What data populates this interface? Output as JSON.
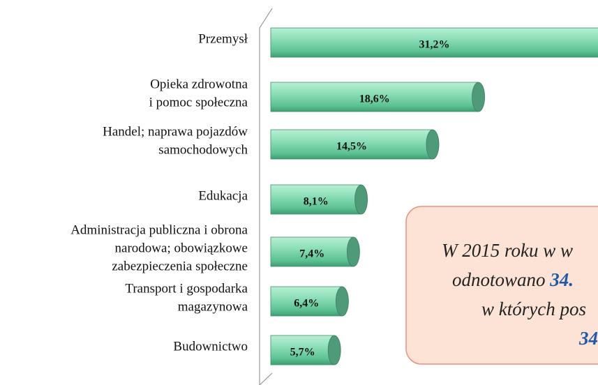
{
  "chart_data": {
    "type": "bar3d-horizontal",
    "categories": [
      [
        "Przemysł"
      ],
      [
        "Opieka zdrowotna",
        "i pomoc społeczna"
      ],
      [
        "Handel; naprawa pojazdów",
        "samochodowych"
      ],
      [
        "Edukacja"
      ],
      [
        "Administracja publiczna i obrona",
        "narodowa; obowiązkowe",
        "zabezpieczenia społeczne"
      ],
      [
        "Transport i gospodarka",
        "magazynowa"
      ],
      [
        "Budownictwo"
      ]
    ],
    "values": [
      31.2,
      18.6,
      14.5,
      8.1,
      7.4,
      6.4,
      5.7
    ],
    "value_labels": [
      "31,2%",
      "18,6%",
      "14,5%",
      "8,1%",
      "7,4%",
      "6,4%",
      "5,7%"
    ],
    "color": "#7fd9b0",
    "xlim": [
      0,
      29
    ],
    "annotation": [
      [
        "W 2015 roku w w"
      ],
      [
        "odnotowano ",
        "34."
      ],
      [
        "w których pos"
      ],
      [
        "34"
      ]
    ]
  }
}
